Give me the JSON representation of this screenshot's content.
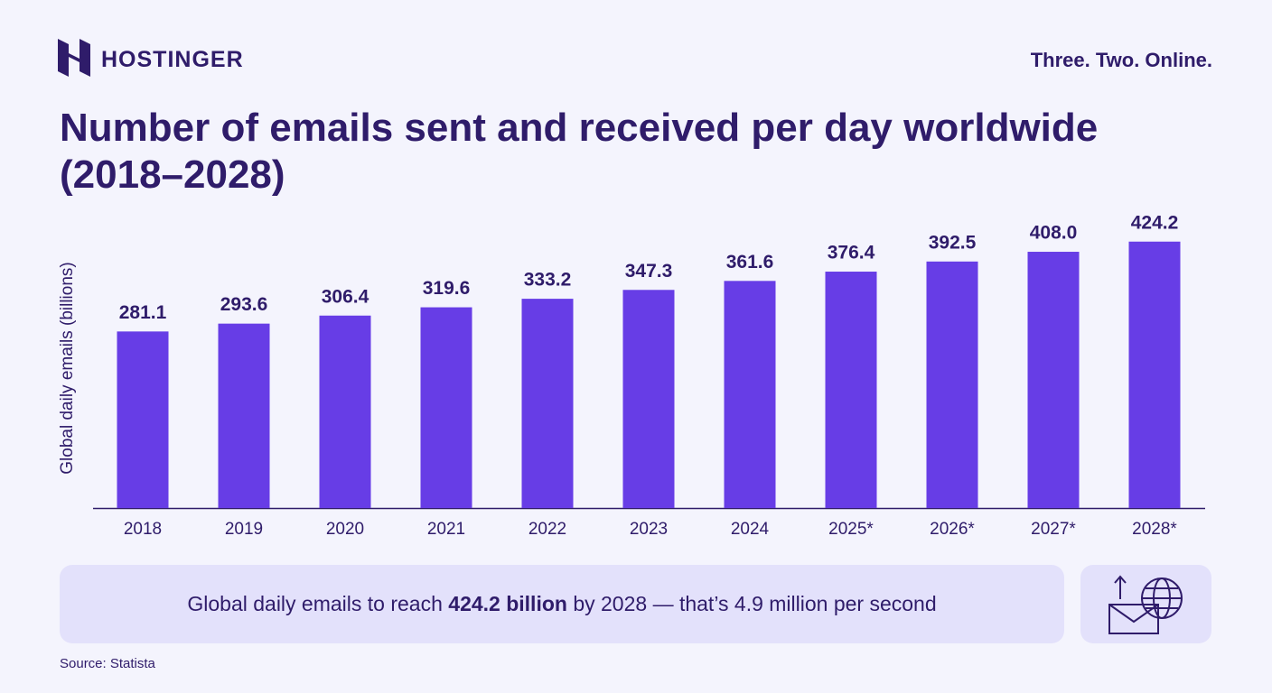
{
  "header": {
    "brand": "HOSTINGER",
    "tagline": "Three. Two. Online."
  },
  "chart_data": {
    "type": "bar",
    "title": "Number of emails sent and received per day worldwide (2018–2028)",
    "y_label": "Global daily emails (billions)",
    "categories": [
      "2018",
      "2019",
      "2020",
      "2021",
      "2022",
      "2023",
      "2024",
      "2025*",
      "2026*",
      "2027*",
      "2028*"
    ],
    "values": [
      281.1,
      293.6,
      306.4,
      319.6,
      333.2,
      347.3,
      361.6,
      376.4,
      392.5,
      408.0,
      424.2
    ],
    "value_labels": [
      "281.1",
      "293.6",
      "306.4",
      "319.6",
      "333.2",
      "347.3",
      "361.6",
      "376.4",
      "392.5",
      "408.0",
      "424.2"
    ],
    "color": "#673de6"
  },
  "callout": {
    "before": "Global daily emails to reach ",
    "bold": "424.2 billion",
    "after": " by 2028 — that’s 4.9 million per second"
  },
  "footer": {
    "source": "Source: Statista"
  }
}
